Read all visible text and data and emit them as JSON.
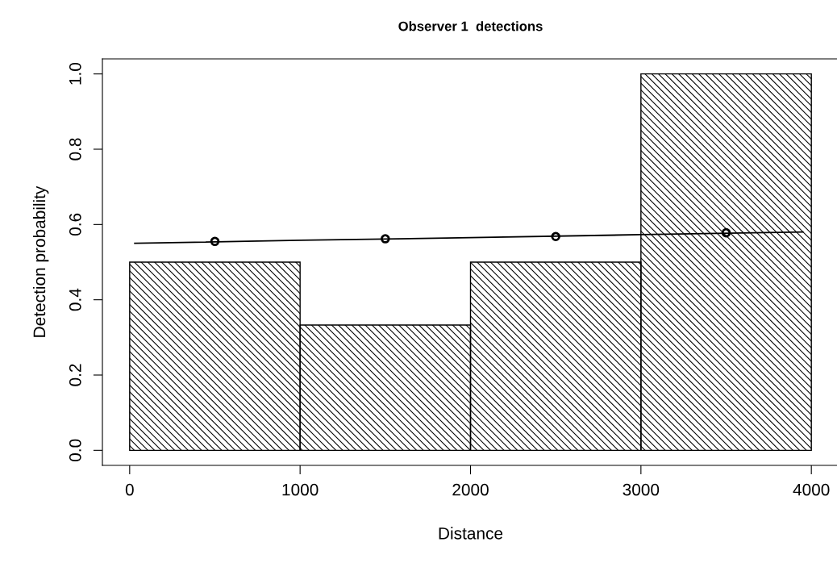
{
  "chart_data": {
    "type": "histogram",
    "title": "Observer 1  detections",
    "xlabel": "Distance",
    "ylabel": "Detection probability",
    "series": [
      {
        "bins": [
          0,
          1000,
          2000,
          3000,
          4000
        ],
        "values": [
          0.5,
          0.333,
          0.5,
          1.0
        ],
        "color": "#000000"
      },
      {
        "type": "line",
        "x": [
          30,
          1000,
          2000,
          3000,
          3950
        ],
        "values": [
          0.55,
          0.558,
          0.565,
          0.573,
          0.58
        ],
        "color": "#000000"
      },
      {
        "type": "scatter",
        "x": [
          500,
          1500,
          2500,
          3500
        ],
        "values": [
          0.555,
          0.562,
          0.568,
          0.578
        ],
        "color": "#000000",
        "marker": "circle"
      }
    ],
    "xlim": [
      -160,
      4160
    ],
    "ylim": [
      -0.04,
      1.04
    ],
    "xticks": [
      0,
      1000,
      2000,
      3000,
      4000
    ],
    "yticks": [
      {
        "value": 0,
        "label": "0.0"
      },
      {
        "value": 0.2,
        "label": "0.2"
      },
      {
        "value": 0.4,
        "label": "0.4"
      },
      {
        "value": 0.6,
        "label": "0.6"
      },
      {
        "value": 0.8,
        "label": "0.8"
      },
      {
        "value": 1.0,
        "label": "1.0"
      }
    ],
    "grid": false,
    "legend": false
  }
}
